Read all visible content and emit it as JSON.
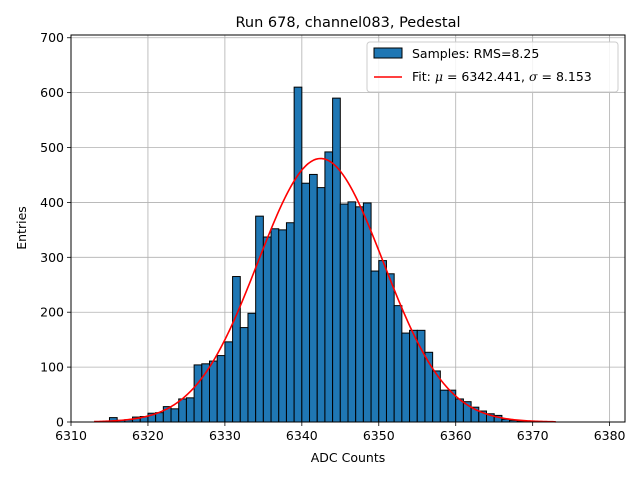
{
  "chart_data": {
    "type": "bar",
    "title": "Run 678, channel083, Pedestal",
    "xlabel": "ADC Counts",
    "ylabel": "Entries",
    "xlim": [
      6310,
      6382
    ],
    "ylim": [
      0,
      705
    ],
    "xticks": [
      6310,
      6320,
      6330,
      6340,
      6350,
      6360,
      6370,
      6380
    ],
    "yticks": [
      0,
      100,
      200,
      300,
      400,
      500,
      600,
      700
    ],
    "grid": true,
    "legend_position": "upper right",
    "bin_width": 1,
    "bins": [
      {
        "x": 6315,
        "y": 8
      },
      {
        "x": 6316,
        "y": 3
      },
      {
        "x": 6317,
        "y": 4
      },
      {
        "x": 6318,
        "y": 9
      },
      {
        "x": 6319,
        "y": 10
      },
      {
        "x": 6320,
        "y": 16
      },
      {
        "x": 6321,
        "y": 17
      },
      {
        "x": 6322,
        "y": 28
      },
      {
        "x": 6323,
        "y": 24
      },
      {
        "x": 6324,
        "y": 42
      },
      {
        "x": 6325,
        "y": 44
      },
      {
        "x": 6326,
        "y": 104
      },
      {
        "x": 6327,
        "y": 106
      },
      {
        "x": 6328,
        "y": 111
      },
      {
        "x": 6329,
        "y": 121
      },
      {
        "x": 6330,
        "y": 146
      },
      {
        "x": 6331,
        "y": 265
      },
      {
        "x": 6332,
        "y": 172
      },
      {
        "x": 6333,
        "y": 198
      },
      {
        "x": 6334,
        "y": 375
      },
      {
        "x": 6335,
        "y": 337
      },
      {
        "x": 6336,
        "y": 352
      },
      {
        "x": 6337,
        "y": 350
      },
      {
        "x": 6338,
        "y": 363
      },
      {
        "x": 6339,
        "y": 610
      },
      {
        "x": 6340,
        "y": 435
      },
      {
        "x": 6341,
        "y": 451
      },
      {
        "x": 6342,
        "y": 427
      },
      {
        "x": 6343,
        "y": 492
      },
      {
        "x": 6344,
        "y": 590
      },
      {
        "x": 6345,
        "y": 397
      },
      {
        "x": 6346,
        "y": 401
      },
      {
        "x": 6347,
        "y": 392
      },
      {
        "x": 6348,
        "y": 399
      },
      {
        "x": 6349,
        "y": 275
      },
      {
        "x": 6350,
        "y": 294
      },
      {
        "x": 6351,
        "y": 270
      },
      {
        "x": 6352,
        "y": 212
      },
      {
        "x": 6353,
        "y": 162
      },
      {
        "x": 6354,
        "y": 167
      },
      {
        "x": 6355,
        "y": 167
      },
      {
        "x": 6356,
        "y": 127
      },
      {
        "x": 6357,
        "y": 93
      },
      {
        "x": 6358,
        "y": 58
      },
      {
        "x": 6359,
        "y": 58
      },
      {
        "x": 6360,
        "y": 42
      },
      {
        "x": 6361,
        "y": 37
      },
      {
        "x": 6362,
        "y": 27
      },
      {
        "x": 6363,
        "y": 20
      },
      {
        "x": 6364,
        "y": 15
      },
      {
        "x": 6365,
        "y": 12
      },
      {
        "x": 6366,
        "y": 5
      },
      {
        "x": 6367,
        "y": 3
      },
      {
        "x": 6368,
        "y": 2
      },
      {
        "x": 6369,
        "y": 1
      },
      {
        "x": 6370,
        "y": 1
      }
    ],
    "fit": {
      "type": "gaussian",
      "mu": 6342.441,
      "sigma": 8.153,
      "amplitude": 480,
      "x_range": [
        6313,
        6373
      ]
    },
    "series": [
      {
        "name": "Samples: RMS=8.25",
        "type": "histogram",
        "color": "#1f77b4",
        "edgecolor": "#000000"
      },
      {
        "name": "Fit: μ = 6342.441, σ = 8.153",
        "type": "line",
        "color": "#ff0000"
      }
    ],
    "legend": {
      "samples_prefix": "Samples: RMS=8.25",
      "fit_prefix": "Fit: ",
      "fit_mu_sym": "μ",
      "fit_mu_val": " = 6342.441, ",
      "fit_sigma_sym": "σ",
      "fit_sigma_val": " = 8.153"
    }
  }
}
